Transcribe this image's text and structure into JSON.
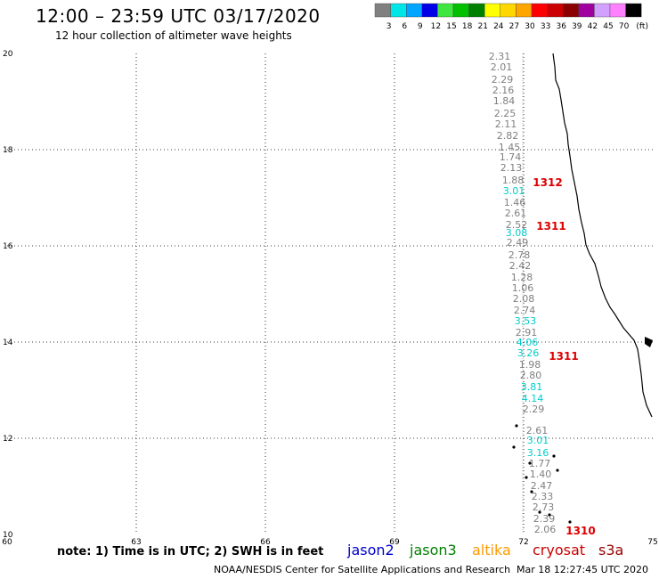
{
  "header": {
    "title": "12:00 – 23:59 UTC 03/17/2020",
    "subtitle": "12 hour collection of altimeter wave heights"
  },
  "legend": {
    "colors": [
      "#808080",
      "#00e5e5",
      "#00a6ff",
      "#0000e6",
      "#40e640",
      "#00c000",
      "#008000",
      "#ffff00",
      "#ffd700",
      "#ffa500",
      "#ff0000",
      "#cc0000",
      "#8b0000",
      "#a000a0",
      "#d2a0ff",
      "#ff80ff",
      "#000000"
    ],
    "labels": [
      "3",
      "6",
      "9",
      "12",
      "15",
      "18",
      "21",
      "24",
      "27",
      "30",
      "33",
      "36",
      "39",
      "42",
      "45",
      "70"
    ],
    "unit": "(ft)"
  },
  "map": {
    "lat_ticks": [
      "20",
      "18",
      "16",
      "14",
      "12",
      "10"
    ],
    "lon_ticks": [
      "60",
      "63",
      "66",
      "69",
      "72",
      "75"
    ],
    "measurements": [
      {
        "v": "2.31",
        "c": "#808080"
      },
      {
        "v": "2.01",
        "c": "#808080"
      },
      {
        "v": "2.29",
        "c": "#808080"
      },
      {
        "v": "2.16",
        "c": "#808080"
      },
      {
        "v": "1.84",
        "c": "#808080"
      },
      {
        "v": "2.25",
        "c": "#808080"
      },
      {
        "v": "2.11",
        "c": "#808080"
      },
      {
        "v": "2.82",
        "c": "#808080"
      },
      {
        "v": "1.45",
        "c": "#808080"
      },
      {
        "v": "1.74",
        "c": "#808080"
      },
      {
        "v": "2.13",
        "c": "#808080"
      },
      {
        "v": "1.88",
        "c": "#808080"
      },
      {
        "v": "3.01",
        "c": "#00cccc"
      },
      {
        "v": "1.46",
        "c": "#808080"
      },
      {
        "v": "2.61",
        "c": "#808080"
      },
      {
        "v": "2.52",
        "c": "#808080"
      },
      {
        "v": "3.08",
        "c": "#00cccc"
      },
      {
        "v": "2.49",
        "c": "#808080"
      },
      {
        "v": "2.78",
        "c": "#808080"
      },
      {
        "v": "2.42",
        "c": "#808080"
      },
      {
        "v": "1.28",
        "c": "#808080"
      },
      {
        "v": "1.06",
        "c": "#808080"
      },
      {
        "v": "2.08",
        "c": "#808080"
      },
      {
        "v": "2.74",
        "c": "#808080"
      },
      {
        "v": "3.53",
        "c": "#00cccc"
      },
      {
        "v": "2.91",
        "c": "#808080"
      },
      {
        "v": "4.06",
        "c": "#00cccc"
      },
      {
        "v": "3.26",
        "c": "#00cccc"
      },
      {
        "v": "1.98",
        "c": "#808080"
      },
      {
        "v": "2.80",
        "c": "#808080"
      },
      {
        "v": "3.81",
        "c": "#00cccc"
      },
      {
        "v": "4.14",
        "c": "#00cccc"
      },
      {
        "v": "2.29",
        "c": "#808080"
      },
      {
        "v": "2.61",
        "c": "#808080"
      },
      {
        "v": "3.01",
        "c": "#00cccc"
      },
      {
        "v": "3.16",
        "c": "#00cccc"
      },
      {
        "v": "1.77",
        "c": "#808080"
      },
      {
        "v": "1.40",
        "c": "#808080"
      },
      {
        "v": "2.47",
        "c": "#808080"
      },
      {
        "v": "2.33",
        "c": "#808080"
      },
      {
        "v": "2.73",
        "c": "#808080"
      },
      {
        "v": "2.39",
        "c": "#808080"
      },
      {
        "v": "2.06",
        "c": "#808080"
      }
    ],
    "time_labels": [
      "1312",
      "1311",
      "1311",
      "1310"
    ]
  },
  "footer": {
    "note": "note: 1) Time is in UTC; 2) SWH is in feet",
    "satellites": [
      {
        "name": "jason2",
        "color": "#0000cc"
      },
      {
        "name": "jason3",
        "color": "#008000"
      },
      {
        "name": "altika",
        "color": "#ff9900"
      },
      {
        "name": "cryosat",
        "color": "#cc0000"
      },
      {
        "name": "s3a",
        "color": "#990000"
      }
    ],
    "credit": "NOAA/NESDIS Center for Satellite Applications and Research",
    "timestamp": "Mar 18 12:27:45 UTC 2020"
  }
}
